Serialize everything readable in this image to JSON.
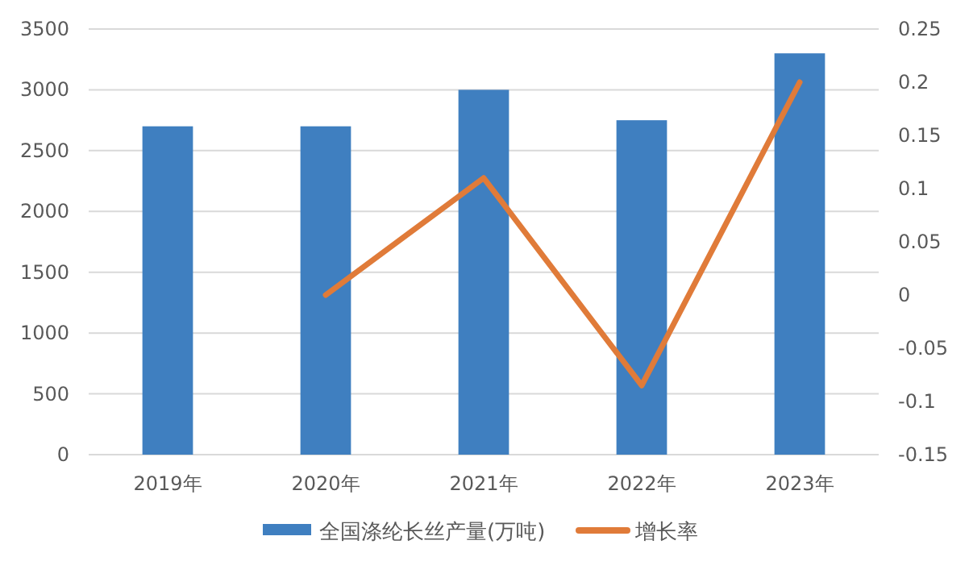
{
  "chart_data": {
    "type": "bar",
    "categories": [
      "2019年",
      "2020年",
      "2021年",
      "2022年",
      "2023年"
    ],
    "series": [
      {
        "name": "全国涤纶长丝产量(万吨)",
        "color": "#3f7fc0",
        "values": [
          2700,
          2700,
          3000,
          2750,
          3300
        ]
      },
      {
        "name": "增长率",
        "type": "line",
        "axis": "y2",
        "color": "#e07b39",
        "values": [
          null,
          0,
          0.11,
          -0.085,
          0.2
        ]
      }
    ],
    "ylim": [
      0,
      3500
    ],
    "yticks": [
      0,
      500,
      1000,
      1500,
      2000,
      2500,
      3000,
      3500
    ],
    "y2lim": [
      -0.15,
      0.25
    ],
    "y2ticks": [
      -0.15,
      -0.1,
      -0.05,
      0,
      0.05,
      0.1,
      0.15,
      0.2,
      0.25
    ],
    "grid": "y",
    "legend": "bottom"
  }
}
